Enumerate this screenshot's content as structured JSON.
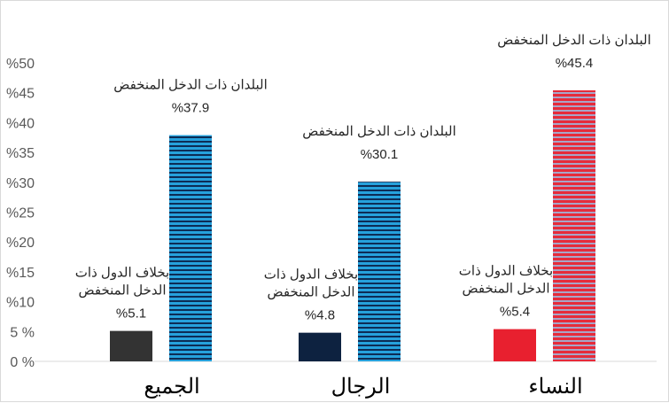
{
  "chart_data": {
    "type": "bar",
    "categories": [
      "الجميع",
      "الرجال",
      "النساء"
    ],
    "y_ticks": [
      "0 %",
      "5 %",
      "%10",
      "%15",
      "%20",
      "%25",
      "%30",
      "%35",
      "%40",
      "%45",
      "%50"
    ],
    "ylim": [
      0,
      50
    ],
    "grid": false,
    "legend": "none",
    "series": [
      {
        "label_lines": [
          "بخلاف الدول ذات",
          "الدخل المنخفض"
        ],
        "values": [
          5.1,
          4.8,
          5.4
        ],
        "value_labels": [
          "%5.1",
          "%4.8",
          "%5.4"
        ],
        "colors": [
          "#333333",
          "#0d2240",
          "#e8202f"
        ]
      },
      {
        "label_lines": [
          "البلدان ذات الدخل المنخفض"
        ],
        "values": [
          37.9,
          30.1,
          45.4
        ],
        "value_labels": [
          "%37.9",
          "%30.1",
          "%45.4"
        ],
        "colors": [
          "#1b7fbf",
          "#1b7fbf",
          "#d5203a"
        ],
        "pattern": "horizontal-stripes"
      }
    ]
  }
}
